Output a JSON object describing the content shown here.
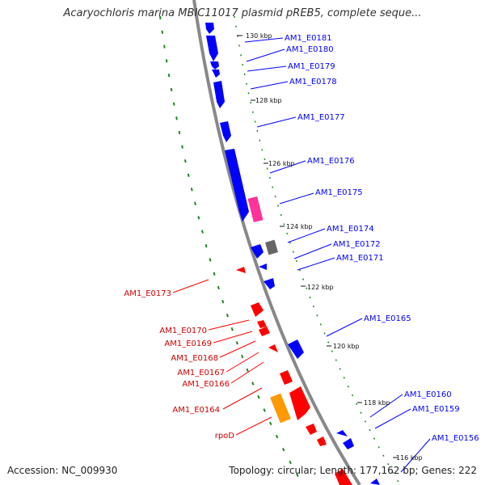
{
  "title": "Acaryochloris marina MBIC11017 plasmid pREB5, complete seque...",
  "accession": "Accession: NC_009930",
  "summary": "Topology: circular; Length: 177,162 bp; Genes: 222",
  "colors": {
    "forward": "#0000ff",
    "reverse": "#ff0000",
    "pink": "#ff3399",
    "grey": "#666666",
    "orange": "#ff9900",
    "backbone": "#888888",
    "gc": "#228822"
  },
  "ticks": [
    "130 kbp",
    "128 kbp",
    "126 kbp",
    "124 kbp",
    "122 kbp",
    "120 kbp",
    "118 kbp",
    "116 kbp"
  ],
  "forward_genes": [
    "AM1_E0181",
    "AM1_E0180",
    "AM1_E0179",
    "AM1_E0178",
    "AM1_E0177",
    "AM1_E0176",
    "AM1_E0175",
    "AM1_E0174",
    "AM1_E0172",
    "AM1_E0171",
    "AM1_E0165",
    "AM1_E0160",
    "AM1_E0159",
    "AM1_E0156"
  ],
  "reverse_genes": [
    "AM1_E0173",
    "AM1_E0170",
    "AM1_E0169",
    "AM1_E0168",
    "AM1_E0167",
    "AM1_E0166",
    "AM1_E0164",
    "rpoD"
  ]
}
